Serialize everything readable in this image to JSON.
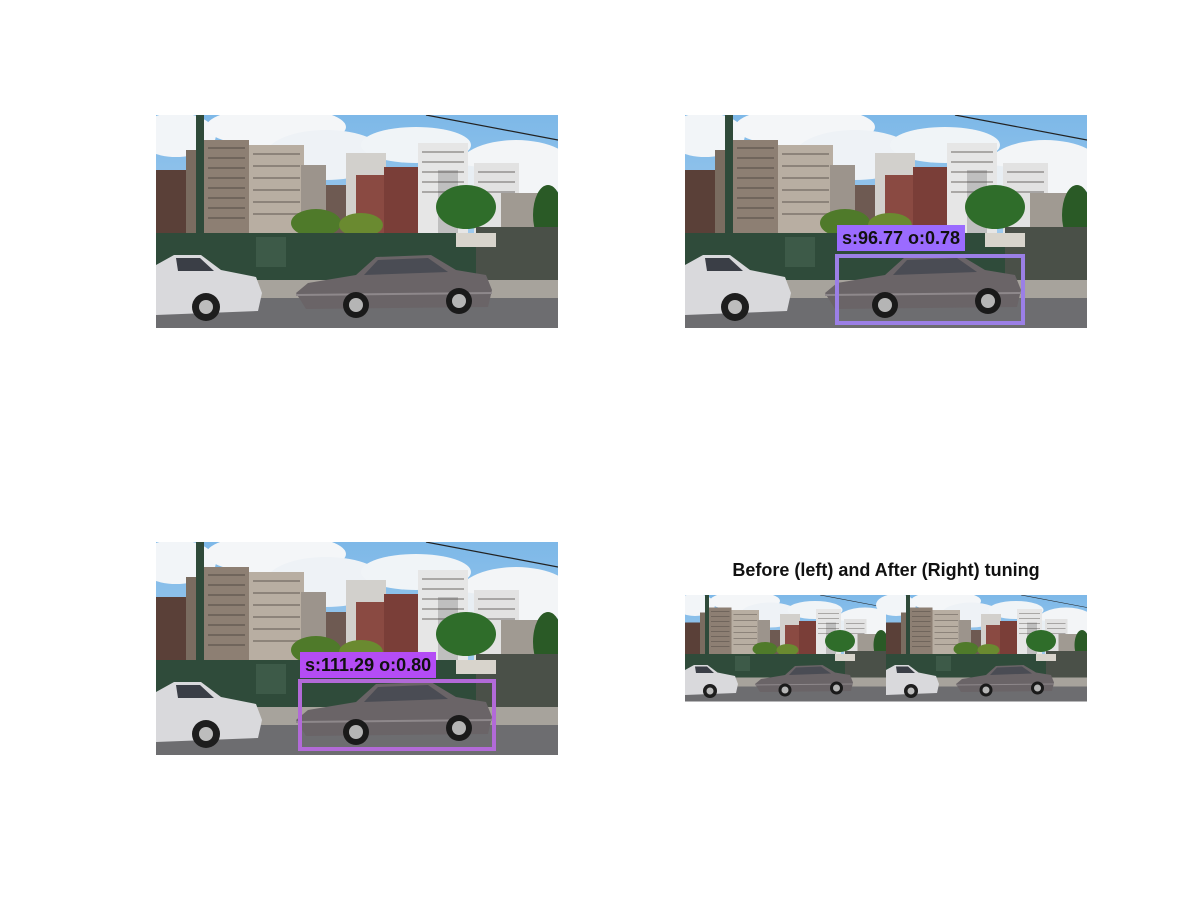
{
  "panels": {
    "original": {},
    "detection_before": {
      "label": "s:96.77 o:0.78",
      "box_color": "#9b7fe6",
      "label_bg": "#9b6bff"
    },
    "detection_after": {
      "label": "s:111.29 o:0.80",
      "box_color": "#b26ad8",
      "label_bg": "#b44cf5"
    },
    "comparison": {
      "title": "Before (left) and After (Right) tuning"
    }
  },
  "colors": {
    "sky": "#8fc3ec",
    "cloud": "#f4f6f8",
    "fence": "#2f4b3a",
    "road": "#6d6d70",
    "car_grey": "#6a6467",
    "car_white": "#d9d9dc"
  }
}
